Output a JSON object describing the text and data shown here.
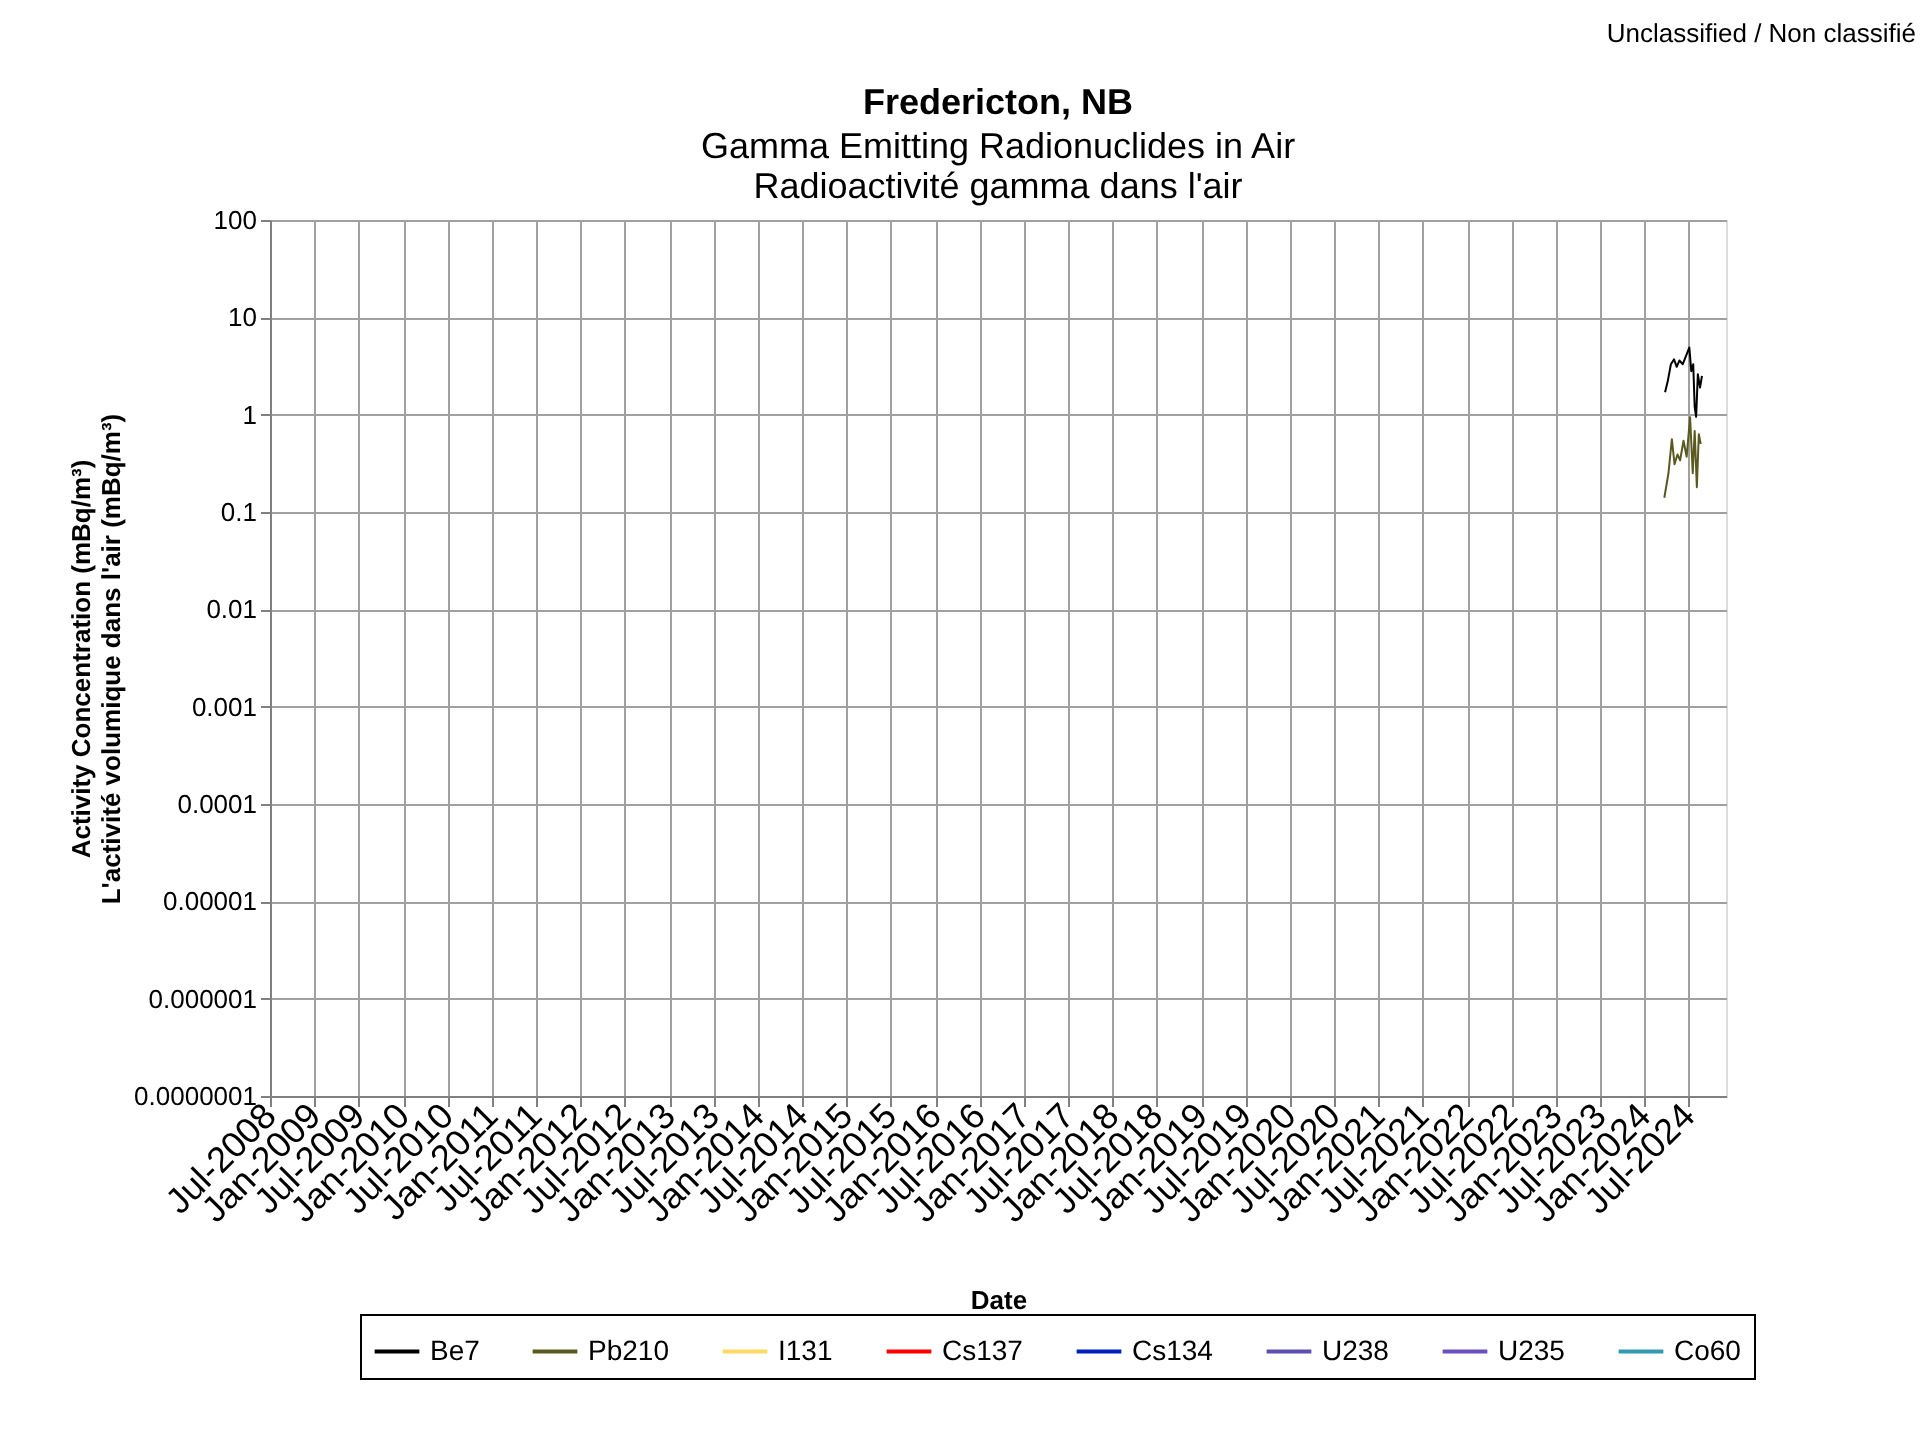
{
  "chart_data": {
    "type": "line",
    "title": "Fredericton, NB",
    "subtitle": "Gamma Emitting Radionuclides in Air\nRadioactivité gamma dans l'air",
    "xlabel": "Date",
    "ylabel": "Activity Concentration  (mBq/m³)\nL'activité volumique dans l'air (mBq/m³)",
    "annotations": [
      "Unclassified / Non classifié"
    ],
    "log": true,
    "grid": true,
    "legend": "bottom",
    "xlim": [
      "2008-07-01",
      "2024-12-01"
    ],
    "xticks": [
      {
        "value": "2008-07-01",
        "label": "Jul-2008"
      },
      {
        "value": "2009-01-01",
        "label": "Jan-2009"
      },
      {
        "value": "2009-07-01",
        "label": "Jul-2009"
      },
      {
        "value": "2010-01-01",
        "label": "Jan-2010"
      },
      {
        "value": "2010-07-01",
        "label": "Jul-2010"
      },
      {
        "value": "2011-01-01",
        "label": "Jan-2011"
      },
      {
        "value": "2011-07-01",
        "label": "Jul-2011"
      },
      {
        "value": "2012-01-01",
        "label": "Jan-2012"
      },
      {
        "value": "2012-07-01",
        "label": "Jul-2012"
      },
      {
        "value": "2013-01-01",
        "label": "Jan-2013"
      },
      {
        "value": "2013-07-01",
        "label": "Jul-2013"
      },
      {
        "value": "2014-01-01",
        "label": "Jan-2014"
      },
      {
        "value": "2014-07-01",
        "label": "Jul-2014"
      },
      {
        "value": "2015-01-01",
        "label": "Jan-2015"
      },
      {
        "value": "2015-07-01",
        "label": "Jul-2015"
      },
      {
        "value": "2016-01-01",
        "label": "Jan-2016"
      },
      {
        "value": "2016-07-01",
        "label": "Jul-2016"
      },
      {
        "value": "2017-01-01",
        "label": "Jan-2017"
      },
      {
        "value": "2017-07-01",
        "label": "Jul-2017"
      },
      {
        "value": "2018-01-01",
        "label": "Jan-2018"
      },
      {
        "value": "2018-07-01",
        "label": "Jul-2018"
      },
      {
        "value": "2019-01-01",
        "label": "Jan-2019"
      },
      {
        "value": "2019-07-01",
        "label": "Jul-2019"
      },
      {
        "value": "2020-01-01",
        "label": "Jan-2020"
      },
      {
        "value": "2020-07-01",
        "label": "Jul-2020"
      },
      {
        "value": "2021-01-01",
        "label": "Jan-2021"
      },
      {
        "value": "2021-07-01",
        "label": "Jul-2021"
      },
      {
        "value": "2022-01-01",
        "label": "Jan-2022"
      },
      {
        "value": "2022-07-01",
        "label": "Jul-2022"
      },
      {
        "value": "2023-01-01",
        "label": "Jan-2023"
      },
      {
        "value": "2023-07-01",
        "label": "Jul-2023"
      },
      {
        "value": "2024-01-01",
        "label": "Jan-2024"
      },
      {
        "value": "2024-07-01",
        "label": "Jul-2024"
      }
    ],
    "ylim": [
      1e-07,
      100
    ],
    "yticks": [
      {
        "value": 1e-07,
        "label": "0.0000001"
      },
      {
        "value": 1e-06,
        "label": "0.000001"
      },
      {
        "value": 1e-05,
        "label": "0.00001"
      },
      {
        "value": 0.0001,
        "label": "0.0001"
      },
      {
        "value": 0.001,
        "label": "0.001"
      },
      {
        "value": 0.01,
        "label": "0.01"
      },
      {
        "value": 0.1,
        "label": "0.1"
      },
      {
        "value": 1,
        "label": "1"
      },
      {
        "value": 10,
        "label": "10"
      },
      {
        "value": 100,
        "label": "100"
      }
    ],
    "series": [
      {
        "name": "Be7",
        "color": "#000000",
        "x": [
          "2024-03-25",
          "2024-04-05",
          "2024-04-18",
          "2024-05-01",
          "2024-05-12",
          "2024-05-23",
          "2024-06-06",
          "2024-06-19",
          "2024-07-03",
          "2024-07-11",
          "2024-07-19",
          "2024-07-25",
          "2024-07-31",
          "2024-08-07",
          "2024-08-16",
          "2024-08-24"
        ],
        "values": [
          1.7,
          2.2,
          3.3,
          3.7,
          3.1,
          3.6,
          3.3,
          4.0,
          4.9,
          2.8,
          3.3,
          1.2,
          0.95,
          2.6,
          1.9,
          2.5
        ]
      },
      {
        "name": "Pb210",
        "color": "#5a5a1e",
        "x": [
          "2024-03-22",
          "2024-04-08",
          "2024-04-22",
          "2024-05-03",
          "2024-05-15",
          "2024-05-26",
          "2024-06-09",
          "2024-06-22",
          "2024-07-06",
          "2024-07-17",
          "2024-07-25",
          "2024-08-03",
          "2024-08-11",
          "2024-08-19"
        ],
        "values": [
          0.14,
          0.25,
          0.56,
          0.31,
          0.39,
          0.34,
          0.54,
          0.37,
          0.94,
          0.25,
          0.68,
          0.18,
          0.63,
          0.5
        ]
      },
      {
        "name": "I131",
        "color": "#ffd966"
      },
      {
        "name": "Cs137",
        "color": "#ff0000"
      },
      {
        "name": "Cs134",
        "color": "#0020c0"
      },
      {
        "name": "U238",
        "color": "#5b4fb3"
      },
      {
        "name": "U235",
        "color": "#6a4fc0"
      },
      {
        "name": "Co60",
        "color": "#3399b0"
      }
    ]
  }
}
